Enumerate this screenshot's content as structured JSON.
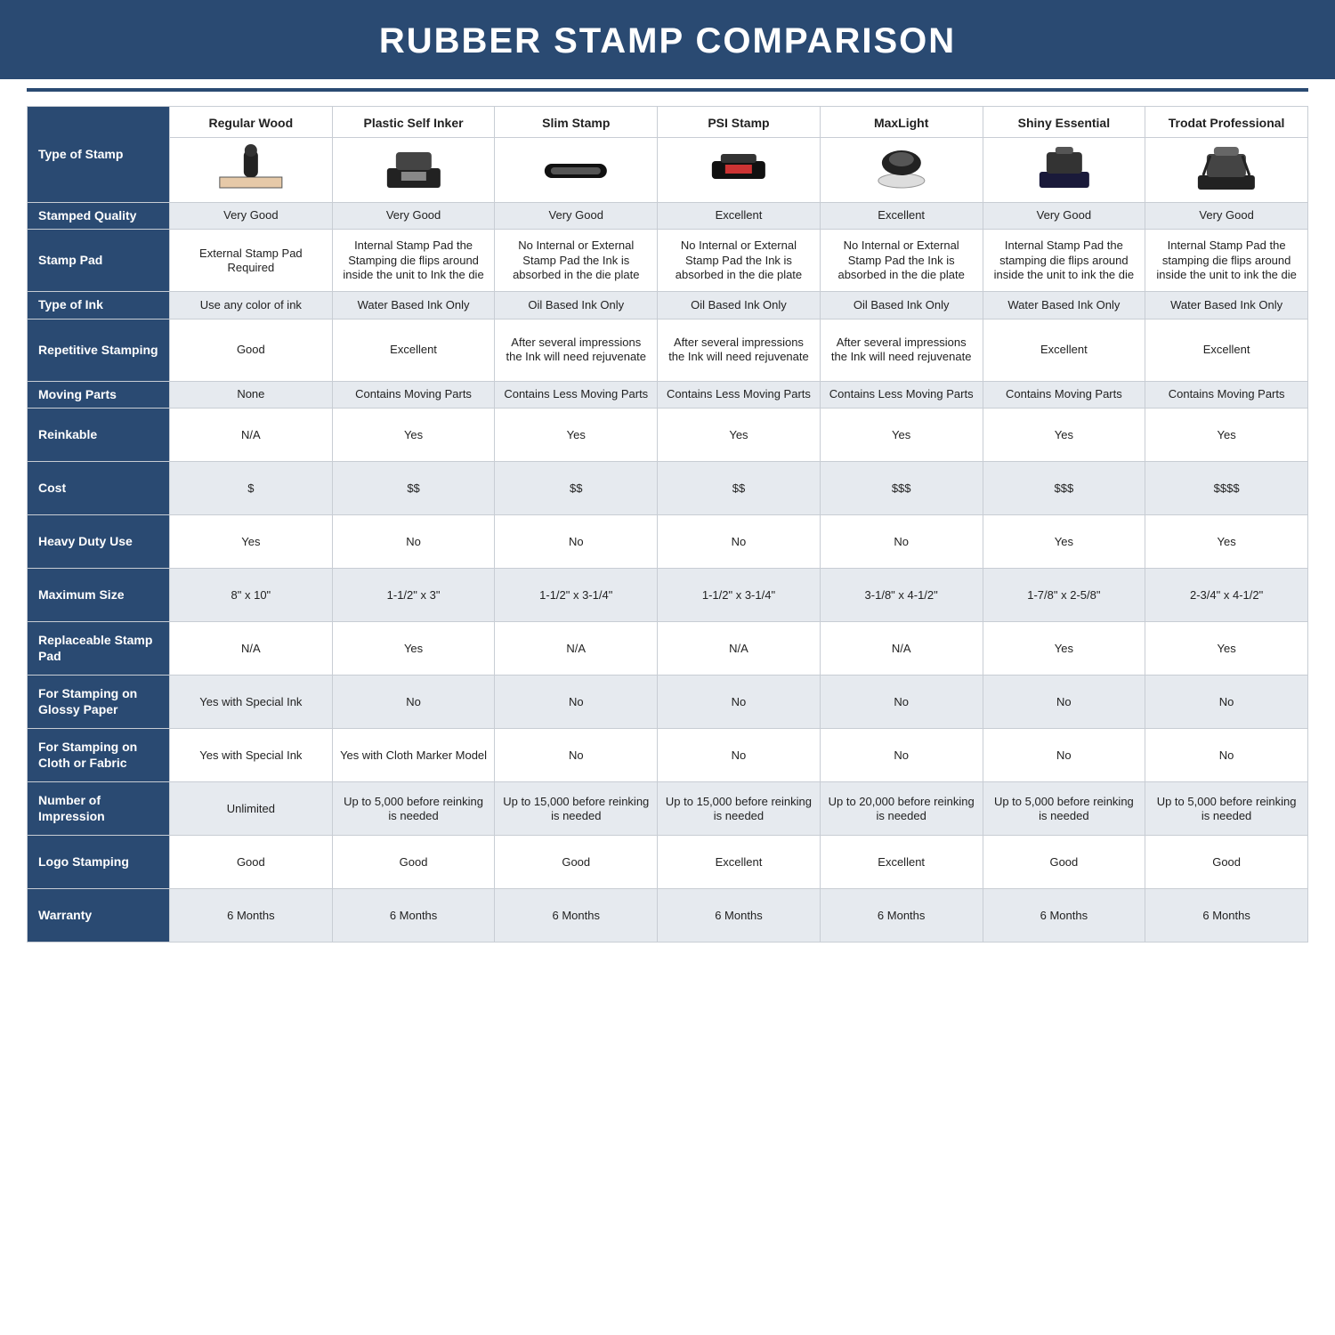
{
  "title": "RUBBER STAMP COMPARISON",
  "colors": {
    "header_bg": "#2a4a72",
    "header_fg": "#ffffff",
    "alt_row": "#e6eaef",
    "plain_row": "#ffffff",
    "border": "#c8cdd4"
  },
  "columns": [
    "Regular Wood",
    "Plastic Self Inker",
    "Slim Stamp",
    "PSI Stamp",
    "MaxLight",
    "Shiny Essential",
    "Trodat Professional"
  ],
  "first_row_label": "Type of Stamp",
  "rows": [
    {
      "label": "Stamped Quality",
      "cells": [
        "Very Good",
        "Very Good",
        "Very Good",
        "Excellent",
        "Excellent",
        "Very Good",
        "Very Good"
      ],
      "alt": true
    },
    {
      "label": "Stamp Pad",
      "cells": [
        "External Stamp Pad Required",
        "Internal Stamp Pad the Stamping die flips around inside the unit to Ink the die",
        "No Internal or External Stamp Pad the Ink is absorbed in the die plate",
        "No Internal or External Stamp Pad the Ink is absorbed in the die plate",
        "No Internal or External Stamp Pad the Ink is absorbed in the die plate",
        "Internal Stamp Pad the stamping die flips around inside the unit to ink the die",
        "Internal Stamp Pad the stamping die flips around inside the unit to ink the die"
      ],
      "alt": false,
      "tall": true
    },
    {
      "label": "Type of Ink",
      "cells": [
        "Use any color of ink",
        "Water Based Ink Only",
        "Oil Based Ink Only",
        "Oil Based Ink Only",
        "Oil Based Ink Only",
        "Water Based Ink Only",
        "Water Based Ink Only"
      ],
      "alt": true
    },
    {
      "label": "Repetitive Stamping",
      "cells": [
        "Good",
        "Excellent",
        "After several impressions the Ink will need rejuvenate",
        "After several impressions the Ink will need rejuvenate",
        "After several impressions the Ink will need rejuvenate",
        "Excellent",
        "Excellent"
      ],
      "alt": false,
      "tall": true
    },
    {
      "label": "Moving Parts",
      "cells": [
        "None",
        "Contains Moving Parts",
        "Contains Less Moving Parts",
        "Contains Less Moving Parts",
        "Contains Less Moving Parts",
        "Contains Moving Parts",
        "Contains Moving Parts"
      ],
      "alt": true
    },
    {
      "label": "Reinkable",
      "cells": [
        "N/A",
        "Yes",
        "Yes",
        "Yes",
        "Yes",
        "Yes",
        "Yes"
      ],
      "alt": false,
      "med": true
    },
    {
      "label": "Cost",
      "cells": [
        "$",
        "$$",
        "$$",
        "$$",
        "$$$",
        "$$$",
        "$$$$"
      ],
      "alt": true,
      "med": true
    },
    {
      "label": "Heavy Duty Use",
      "cells": [
        "Yes",
        "No",
        "No",
        "No",
        "No",
        "Yes",
        "Yes"
      ],
      "alt": false,
      "med": true
    },
    {
      "label": "Maximum Size",
      "cells": [
        "8\" x 10\"",
        "1-1/2\" x 3\"",
        "1-1/2\" x 3-1/4\"",
        "1-1/2\" x 3-1/4\"",
        "3-1/8\" x 4-1/2\"",
        "1-7/8\" x 2-5/8\"",
        "2-3/4\" x 4-1/2\""
      ],
      "alt": true,
      "med": true
    },
    {
      "label": "Replaceable Stamp Pad",
      "cells": [
        "N/A",
        "Yes",
        "N/A",
        "N/A",
        "N/A",
        "Yes",
        "Yes"
      ],
      "alt": false,
      "med": true
    },
    {
      "label": "For Stamping on Glossy Paper",
      "cells": [
        "Yes with Special Ink",
        "No",
        "No",
        "No",
        "No",
        "No",
        "No"
      ],
      "alt": true,
      "med": true
    },
    {
      "label": "For Stamping on Cloth or Fabric",
      "cells": [
        "Yes with Special Ink",
        "Yes with Cloth Marker Model",
        "No",
        "No",
        "No",
        "No",
        "No"
      ],
      "alt": false,
      "med": true
    },
    {
      "label": "Number of Impression",
      "cells": [
        "Unlimited",
        "Up to 5,000 before reinking is needed",
        "Up to 15,000 before reinking is needed",
        "Up to 15,000 before reinking is needed",
        "Up to 20,000 before reinking is needed",
        "Up to 5,000 before reinking is needed",
        "Up to 5,000 before reinking is needed"
      ],
      "alt": true,
      "med": true
    },
    {
      "label": "Logo Stamping",
      "cells": [
        "Good",
        "Good",
        "Good",
        "Excellent",
        "Excellent",
        "Good",
        "Good"
      ],
      "alt": false,
      "med": true
    },
    {
      "label": "Warranty",
      "cells": [
        "6 Months",
        "6 Months",
        "6 Months",
        "6 Months",
        "6 Months",
        "6 Months",
        "6 Months"
      ],
      "alt": true,
      "med": true
    }
  ]
}
